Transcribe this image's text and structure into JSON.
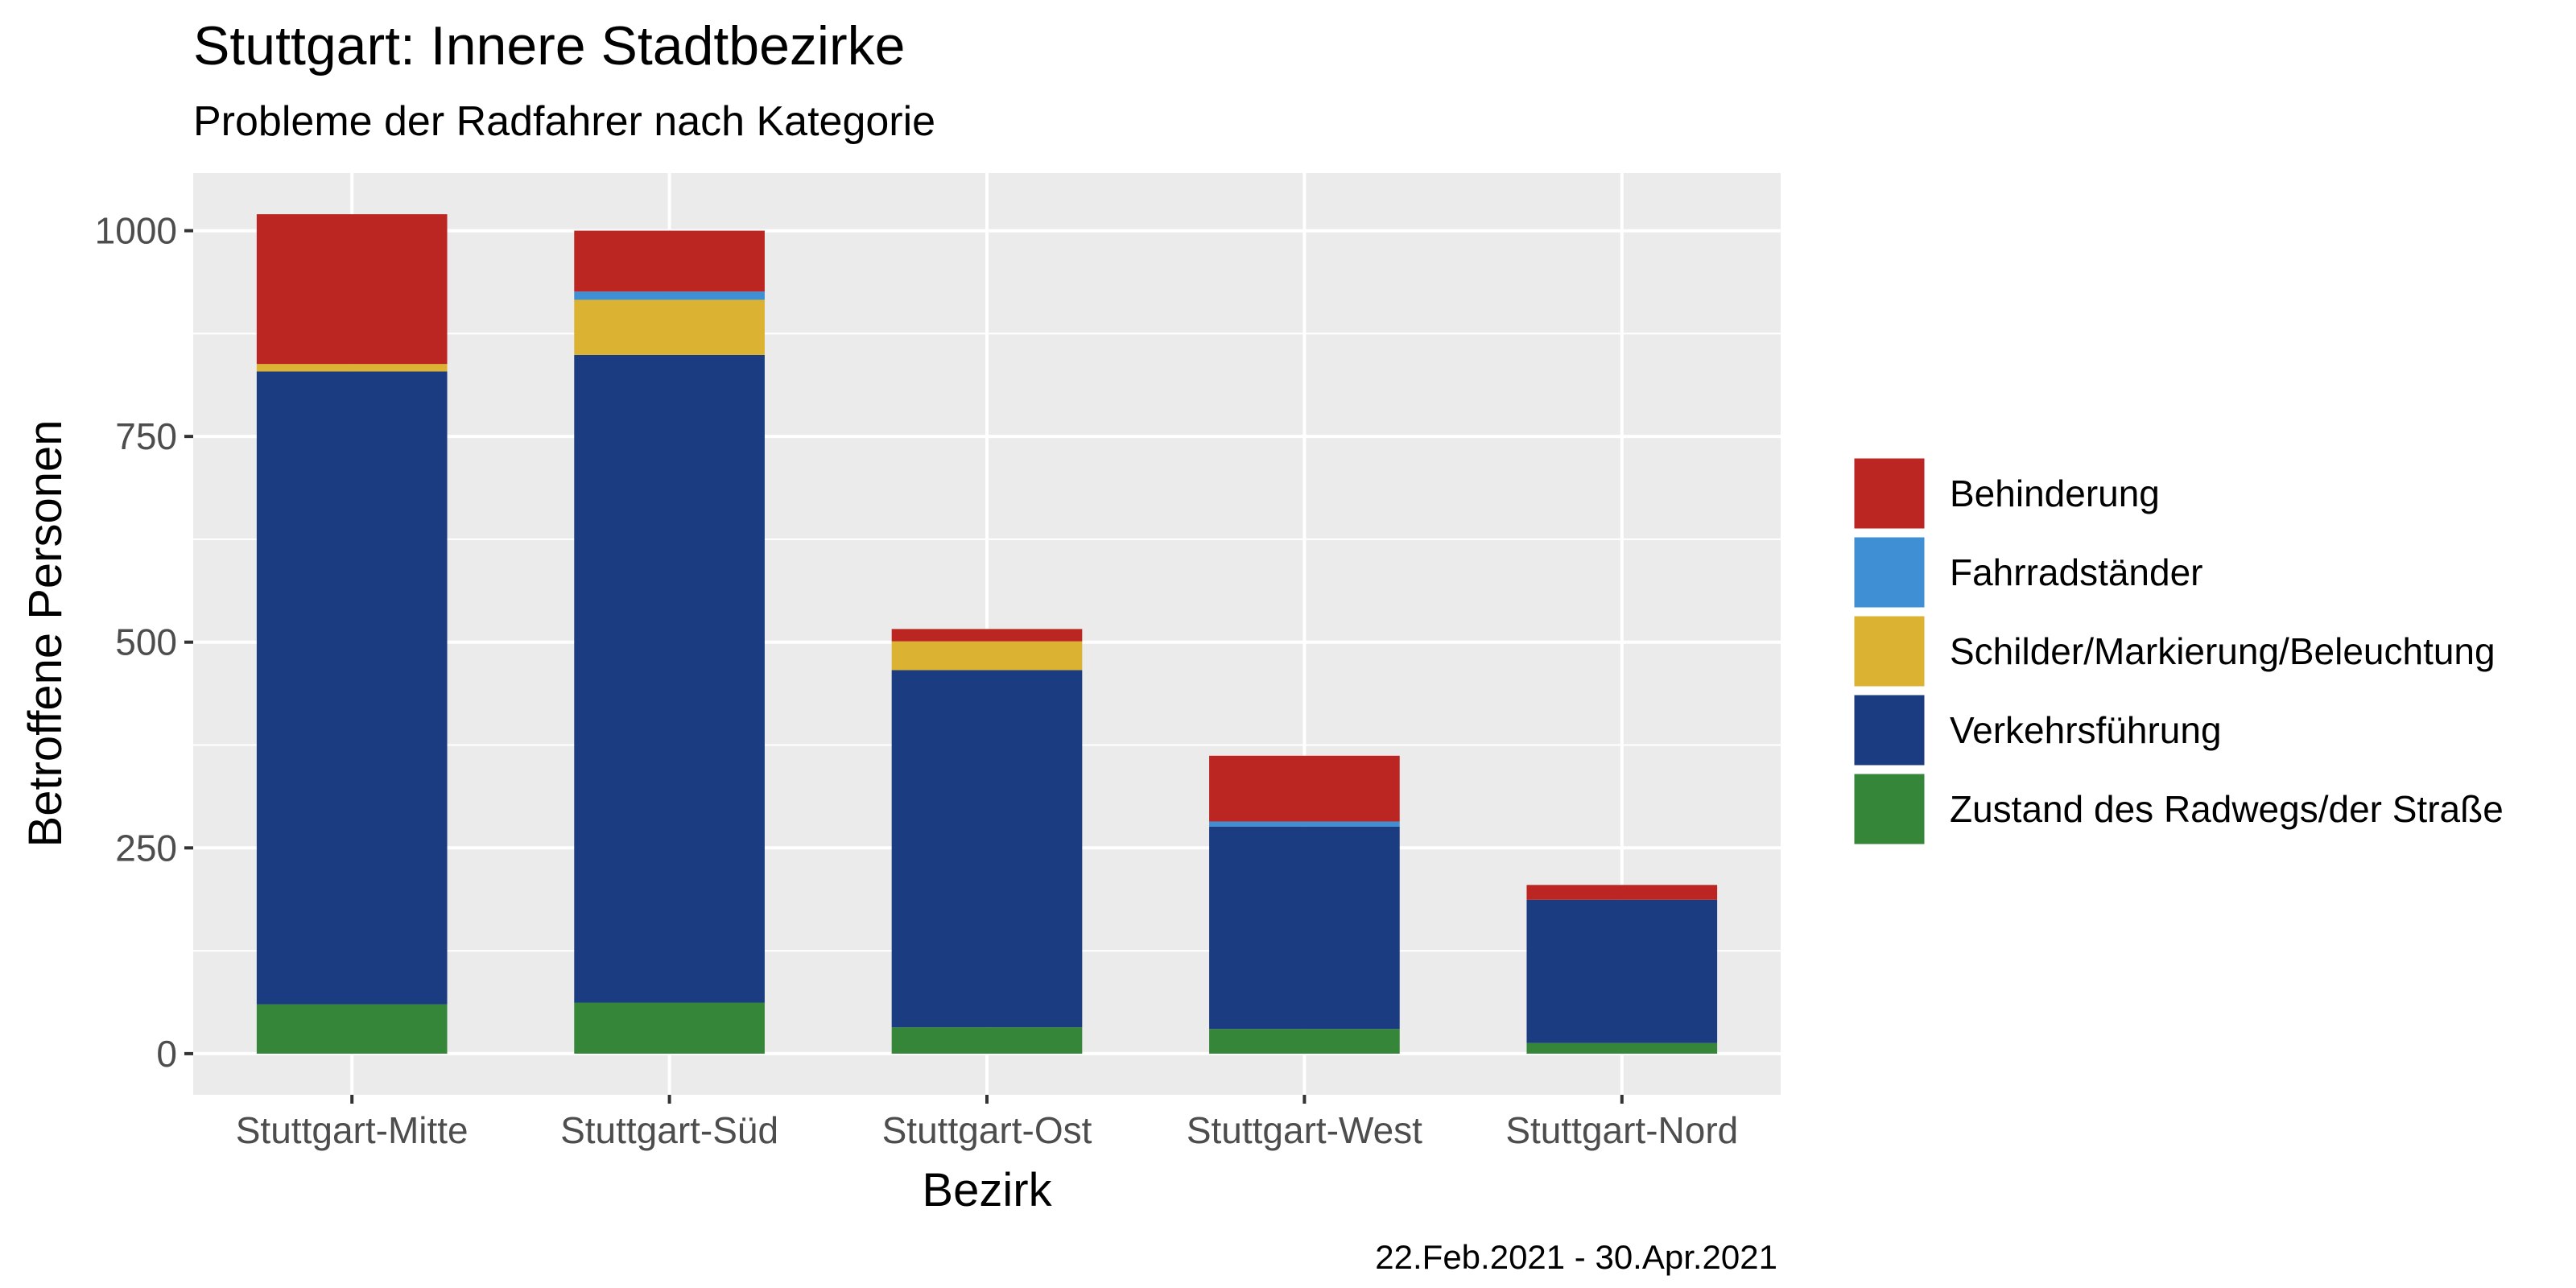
{
  "chart_data": {
    "type": "bar",
    "stacked": true,
    "title": "Stuttgart: Innere Stadtbezirke",
    "subtitle": "Probleme der Radfahrer nach Kategorie",
    "xlabel": "Bezirk",
    "ylabel": "Betroffene Personen",
    "caption": "22.Feb.2021 - 30.Apr.2021",
    "categories": [
      "Stuttgart-Mitte",
      "Stuttgart-Süd",
      "Stuttgart-Ost",
      "Stuttgart-West",
      "Stuttgart-Nord"
    ],
    "ylim": [
      -50,
      1070
    ],
    "yticks": [
      0,
      250,
      500,
      750,
      1000
    ],
    "ytick_labels": [
      "0",
      "250",
      "500",
      "750",
      "1000"
    ],
    "grid": true,
    "legend_position": "right",
    "stack_order_bottom_to_top": [
      "Zustand des Radwegs/der Straße",
      "Verkehrsführung",
      "Schilder/Markierung/Beleuchtung",
      "Fahrradständer",
      "Behinderung"
    ],
    "series": [
      {
        "name": "Behinderung",
        "color": "#BB2623",
        "values": [
          182,
          74,
          15,
          80,
          18
        ]
      },
      {
        "name": "Fahrradständer",
        "color": "#3E8FD4",
        "values": [
          0,
          10,
          0,
          6,
          0
        ]
      },
      {
        "name": "Schilder/Markierung/Beleuchtung",
        "color": "#DCB232",
        "values": [
          9,
          67,
          35,
          0,
          0
        ]
      },
      {
        "name": "Verkehrsführung",
        "color": "#1B3C80",
        "values": [
          769,
          787,
          434,
          246,
          174
        ]
      },
      {
        "name": "Zustand des Radwegs/der Straße",
        "color": "#36863A",
        "values": [
          60,
          62,
          32,
          30,
          13
        ]
      }
    ]
  }
}
